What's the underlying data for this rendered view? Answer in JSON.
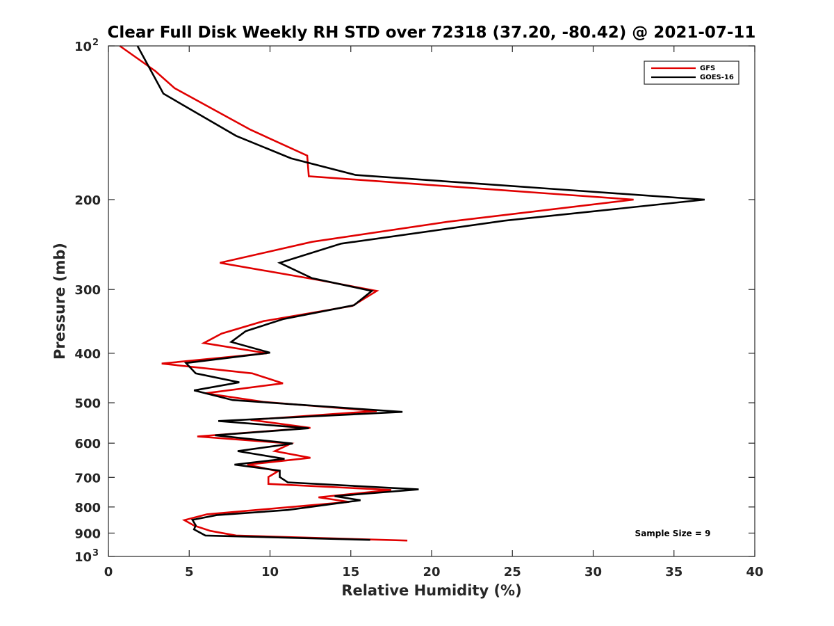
{
  "chart_data": {
    "type": "line",
    "title": "Clear Full Disk Weekly RH STD over 72318 (37.20, -80.42) @ 2021-07-11",
    "xlabel": "Relative Humidity (%)",
    "ylabel": "Pressure (mb)",
    "xlim": [
      0,
      40
    ],
    "ylim": [
      100,
      1000
    ],
    "y_scale": "log",
    "y_reversed": true,
    "x_ticks": [
      "0",
      "5",
      "10",
      "15",
      "20",
      "25",
      "30",
      "35",
      "40"
    ],
    "y_ticks": [
      {
        "value": 100,
        "label": "10",
        "sup": "2"
      },
      {
        "value": 200,
        "label": "200",
        "sup": ""
      },
      {
        "value": 300,
        "label": "300",
        "sup": ""
      },
      {
        "value": 400,
        "label": "400",
        "sup": ""
      },
      {
        "value": 500,
        "label": "500",
        "sup": ""
      },
      {
        "value": 600,
        "label": "600",
        "sup": ""
      },
      {
        "value": 700,
        "label": "700",
        "sup": ""
      },
      {
        "value": 800,
        "label": "800",
        "sup": ""
      },
      {
        "value": 900,
        "label": "900",
        "sup": ""
      },
      {
        "value": 1000,
        "label": "10",
        "sup": "3"
      }
    ],
    "legend_position": "top-right",
    "grid": false,
    "annotation": "Sample Size = 9",
    "series": [
      {
        "name": "GFS",
        "color": "#e00000",
        "points": [
          [
            0.7,
            100
          ],
          [
            2.9,
            112
          ],
          [
            4.1,
            121
          ],
          [
            8.8,
            146
          ],
          [
            12.3,
            164
          ],
          [
            12.4,
            180
          ],
          [
            32.5,
            200
          ],
          [
            21,
            221
          ],
          [
            12.6,
            242
          ],
          [
            6.9,
            266
          ],
          [
            12.9,
            287
          ],
          [
            16.6,
            302
          ],
          [
            15.1,
            323
          ],
          [
            9.6,
            346
          ],
          [
            7.0,
            366
          ],
          [
            5.9,
            382
          ],
          [
            9.8,
            400
          ],
          [
            3.3,
            419
          ],
          [
            8.9,
            438
          ],
          [
            10.8,
            458
          ],
          [
            6.0,
            479
          ],
          [
            9.6,
            498
          ],
          [
            16.6,
            519
          ],
          [
            8.8,
            540
          ],
          [
            12.5,
            560
          ],
          [
            5.5,
            582
          ],
          [
            11.3,
            601
          ],
          [
            10.3,
            622
          ],
          [
            12.5,
            641
          ],
          [
            8.6,
            661
          ],
          [
            10.5,
            681
          ],
          [
            9.9,
            699
          ],
          [
            9.9,
            721
          ],
          [
            17.5,
            741
          ],
          [
            13.0,
            766
          ],
          [
            14.9,
            782
          ],
          [
            6.1,
            827
          ],
          [
            4.7,
            849
          ],
          [
            5.3,
            870
          ],
          [
            6.3,
            891
          ],
          [
            7.9,
            910
          ],
          [
            18.5,
            931
          ]
        ]
      },
      {
        "name": "GOES-16",
        "color": "#000000",
        "points": [
          [
            1.8,
            100
          ],
          [
            3.4,
            124
          ],
          [
            7.9,
            150
          ],
          [
            11.3,
            166
          ],
          [
            15.3,
            179
          ],
          [
            36.9,
            200
          ],
          [
            24.5,
            220
          ],
          [
            14.4,
            244
          ],
          [
            10.6,
            266
          ],
          [
            12.6,
            285
          ],
          [
            16.3,
            302
          ],
          [
            15.2,
            322
          ],
          [
            10.8,
            343
          ],
          [
            8.5,
            362
          ],
          [
            7.6,
            380
          ],
          [
            10.0,
            399
          ],
          [
            4.8,
            418
          ],
          [
            5.4,
            438
          ],
          [
            8.1,
            456
          ],
          [
            5.3,
            473
          ],
          [
            7.7,
            494
          ],
          [
            18.2,
            521
          ],
          [
            6.8,
            543
          ],
          [
            12.4,
            561
          ],
          [
            6.6,
            579
          ],
          [
            11.4,
            601
          ],
          [
            8.0,
            622
          ],
          [
            10.9,
            644
          ],
          [
            7.8,
            661
          ],
          [
            10.6,
            679
          ],
          [
            10.6,
            699
          ],
          [
            11.1,
            716
          ],
          [
            19.2,
            739
          ],
          [
            14.0,
            762
          ],
          [
            15.6,
            776
          ],
          [
            11.1,
            811
          ],
          [
            6.7,
            830
          ],
          [
            5.2,
            848
          ],
          [
            5.4,
            869
          ],
          [
            5.3,
            885
          ],
          [
            6.0,
            910
          ],
          [
            16.2,
            928
          ]
        ]
      }
    ]
  }
}
